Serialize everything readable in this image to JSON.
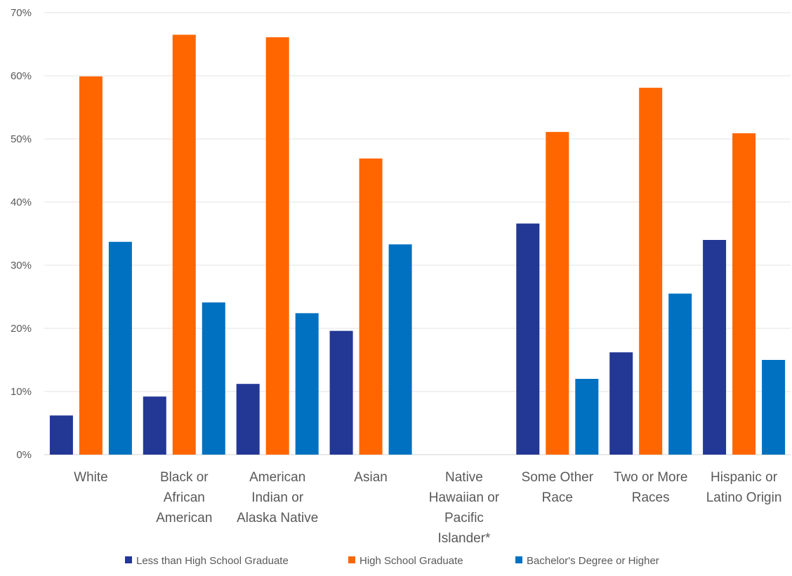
{
  "chart_data": {
    "type": "bar",
    "categories": [
      [
        "White"
      ],
      [
        "Black or",
        "African",
        "American"
      ],
      [
        "American",
        "Indian or",
        "Alaska Native"
      ],
      [
        "Asian"
      ],
      [
        "Native",
        "Hawaiian or",
        "Pacific",
        "Islander*"
      ],
      [
        "Some Other",
        "Race"
      ],
      [
        "Two or More",
        "Races"
      ],
      [
        "Hispanic or",
        "Latino Origin"
      ]
    ],
    "series": [
      {
        "name": "Less than High School Graduate",
        "color": "#233795",
        "values": [
          6.2,
          9.2,
          11.2,
          19.6,
          null,
          36.6,
          16.2,
          34.0
        ]
      },
      {
        "name": "High School Graduate",
        "color": "#ff6600",
        "values": [
          59.9,
          66.5,
          66.1,
          46.9,
          null,
          51.1,
          58.1,
          50.9
        ]
      },
      {
        "name": "Bachelor's Degree or Higher",
        "color": "#0071c1",
        "values": [
          33.7,
          24.1,
          22.4,
          33.3,
          null,
          12.0,
          25.5,
          15.0
        ]
      }
    ],
    "yticks": [
      "0%",
      "10%",
      "20%",
      "30%",
      "40%",
      "50%",
      "60%",
      "70%"
    ],
    "ylim": [
      0,
      70
    ],
    "grid": true,
    "legend_position": "bottom"
  }
}
